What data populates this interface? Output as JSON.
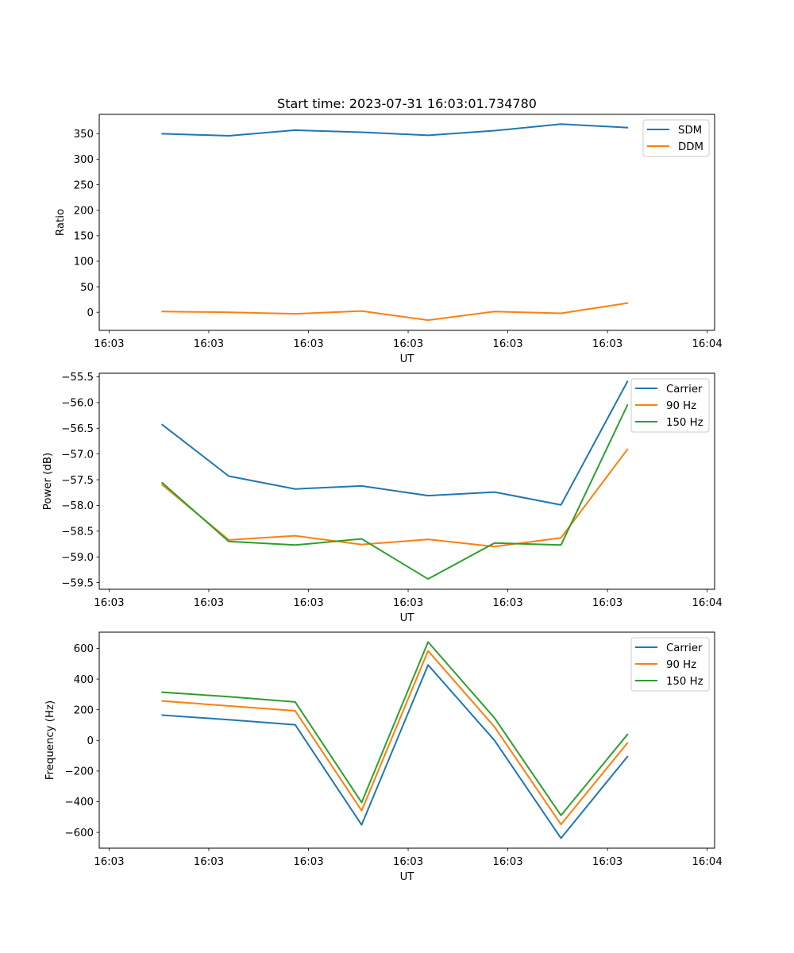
{
  "chart_data": [
    {
      "type": "line",
      "title": "Start time: 2023-07-31 16:03:01.734780",
      "xlabel": "UT",
      "ylabel": "Ratio",
      "legend_position": "top-right",
      "x": [
        1,
        2,
        3,
        4,
        5,
        6,
        7,
        8
      ],
      "xlim": [
        0.0513,
        9.312
      ],
      "ylim": [
        -35.5,
        388
      ],
      "y_ticks": [
        0,
        50,
        100,
        150,
        200,
        250,
        300,
        350
      ],
      "x_ticks": [
        0.2,
        1.7,
        3.2,
        4.7,
        6.2,
        7.7,
        9.2
      ],
      "x_tick_labels": [
        "16:03",
        "16:03",
        "16:03",
        "16:03",
        "16:03",
        "16:03",
        "16:04"
      ],
      "series": [
        {
          "name": "SDM",
          "color": "#1f77b4",
          "values": [
            350,
            346,
            357,
            353,
            347,
            356,
            369,
            362
          ]
        },
        {
          "name": "DDM",
          "color": "#ff7f0e",
          "values": [
            1.5,
            0,
            -3,
            2.5,
            -15.5,
            1.5,
            -2,
            18
          ]
        }
      ]
    },
    {
      "type": "line",
      "title": "",
      "xlabel": "UT",
      "ylabel": "Power (dB)",
      "legend_position": "top-right",
      "x": [
        1,
        2,
        3,
        4,
        5,
        6,
        7,
        8
      ],
      "xlim": [
        0.0513,
        9.312
      ],
      "ylim": [
        -59.63,
        -55.43
      ],
      "y_ticks": [
        -59.5,
        -59.0,
        -58.5,
        -58.0,
        -57.5,
        -57.0,
        -56.5,
        -56.0,
        -55.5
      ],
      "y_tick_labels": [
        "−59.5",
        "−59.0",
        "−58.5",
        "−58.0",
        "−57.5",
        "−57.0",
        "−56.5",
        "−56.0",
        "−55.5"
      ],
      "x_ticks": [
        0.2,
        1.7,
        3.2,
        4.7,
        6.2,
        7.7,
        9.2
      ],
      "x_tick_labels": [
        "16:03",
        "16:03",
        "16:03",
        "16:03",
        "16:03",
        "16:03",
        "16:04"
      ],
      "series": [
        {
          "name": "Carrier",
          "color": "#1f77b4",
          "values": [
            -56.43,
            -57.43,
            -57.68,
            -57.62,
            -57.81,
            -57.74,
            -57.99,
            -55.59
          ]
        },
        {
          "name": "90 Hz",
          "color": "#ff7f0e",
          "values": [
            -57.6,
            -58.67,
            -58.59,
            -58.76,
            -58.66,
            -58.8,
            -58.63,
            -56.91
          ]
        },
        {
          "name": "150 Hz",
          "color": "#2ca02c",
          "values": [
            -57.56,
            -58.7,
            -58.77,
            -58.65,
            -59.43,
            -58.73,
            -58.77,
            -56.05
          ]
        }
      ]
    },
    {
      "type": "line",
      "title": "",
      "xlabel": "UT",
      "ylabel": "Frequency (Hz)",
      "legend_position": "top-right",
      "x": [
        1,
        2,
        3,
        4,
        5,
        6,
        7,
        8
      ],
      "xlim": [
        0.0513,
        9.312
      ],
      "ylim": [
        -703,
        706
      ],
      "y_ticks": [
        -600,
        -400,
        -200,
        0,
        200,
        400,
        600
      ],
      "y_tick_labels": [
        "−600",
        "−400",
        "−200",
        "0",
        "200",
        "400",
        "600"
      ],
      "x_ticks": [
        0.2,
        1.7,
        3.2,
        4.7,
        6.2,
        7.7,
        9.2
      ],
      "x_tick_labels": [
        "16:03",
        "16:03",
        "16:03",
        "16:03",
        "16:03",
        "16:03",
        "16:04"
      ],
      "series": [
        {
          "name": "Carrier",
          "color": "#1f77b4",
          "values": [
            165,
            135,
            102,
            -551,
            492,
            0,
            -638,
            -106
          ]
        },
        {
          "name": "90 Hz",
          "color": "#ff7f0e",
          "values": [
            257,
            225,
            193,
            -458,
            584,
            88,
            -548,
            -17
          ]
        },
        {
          "name": "150 Hz",
          "color": "#2ca02c",
          "values": [
            314,
            285,
            251,
            -405,
            642,
            146,
            -489,
            38
          ]
        }
      ]
    }
  ]
}
